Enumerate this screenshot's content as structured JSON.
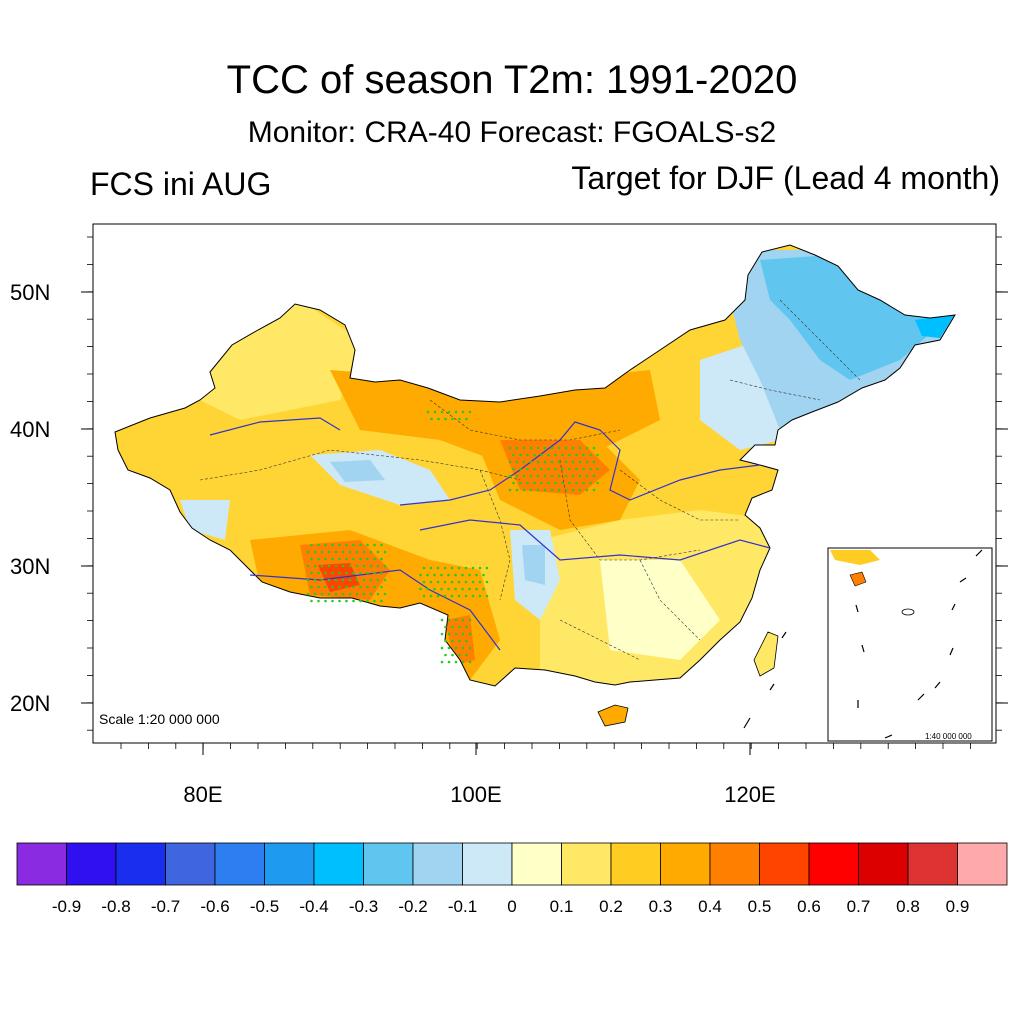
{
  "title": "TCC of season T2m: 1991-2020",
  "subtitle": "Monitor: CRA-40   Forecast: FGOALS-s2",
  "left_label": "FCS ini AUG",
  "right_label": "Target for DJF (Lead 4 month)",
  "map": {
    "lat_labels": [
      "50N",
      "40N",
      "30N",
      "20N"
    ],
    "lon_labels": [
      "80E",
      "100E",
      "120E"
    ],
    "scale_text": "Scale 1:20 000 000",
    "inset_scale_text": "1:40 000 000",
    "stipple_color": "#22cc22",
    "boundary_color": "#3333cc"
  },
  "colorbar": {
    "colors": [
      "#8a2be2",
      "#3010f0",
      "#1a2ef0",
      "#3f66df",
      "#2d7ef0",
      "#1e9af0",
      "#00bfff",
      "#60c6f0",
      "#a0d4f0",
      "#cde8f6",
      "#ffffc8",
      "#ffe866",
      "#ffcc22",
      "#ffaa00",
      "#ff8000",
      "#ff4400",
      "#ff0000",
      "#dd0000",
      "#dd3333",
      "#ffaaaa"
    ],
    "labels": [
      "-0.9",
      "-0.8",
      "-0.7",
      "-0.6",
      "-0.5",
      "-0.4",
      "-0.3",
      "-0.2",
      "-0.1",
      "0",
      "0.1",
      "0.2",
      "0.3",
      "0.4",
      "0.5",
      "0.6",
      "0.7",
      "0.8",
      "0.9"
    ]
  }
}
